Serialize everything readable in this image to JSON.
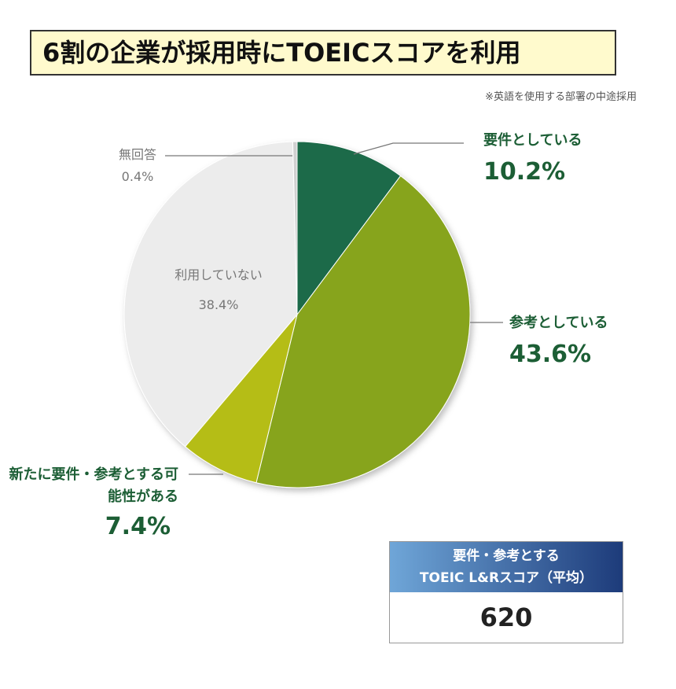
{
  "chart_data": {
    "type": "pie",
    "title": "6割の企業が採用時にTOEICスコアを利用",
    "note": "※英語を使用する部署の中途採用",
    "categories": [
      "要件としている",
      "参考としている",
      "新たに要件・参考とする可能性がある",
      "利用していない",
      "無回答"
    ],
    "values": [
      10.2,
      43.6,
      7.4,
      38.4,
      0.4
    ],
    "value_labels": [
      "10.2%",
      "43.6%",
      "7.4%",
      "38.4%",
      "0.4%"
    ],
    "colors": [
      "#1f6b4a",
      "#87a41e",
      "#b5bd14",
      "#ececec",
      "#d0d0d0"
    ],
    "label_colors": [
      "#1c5e35",
      "#1c5e35",
      "#1c5e35",
      "#777777",
      "#777777"
    ]
  },
  "score_box": {
    "header_lines": [
      "要件・参考とする",
      "TOEIC L&Rスコア（平均）"
    ],
    "value": 620
  }
}
